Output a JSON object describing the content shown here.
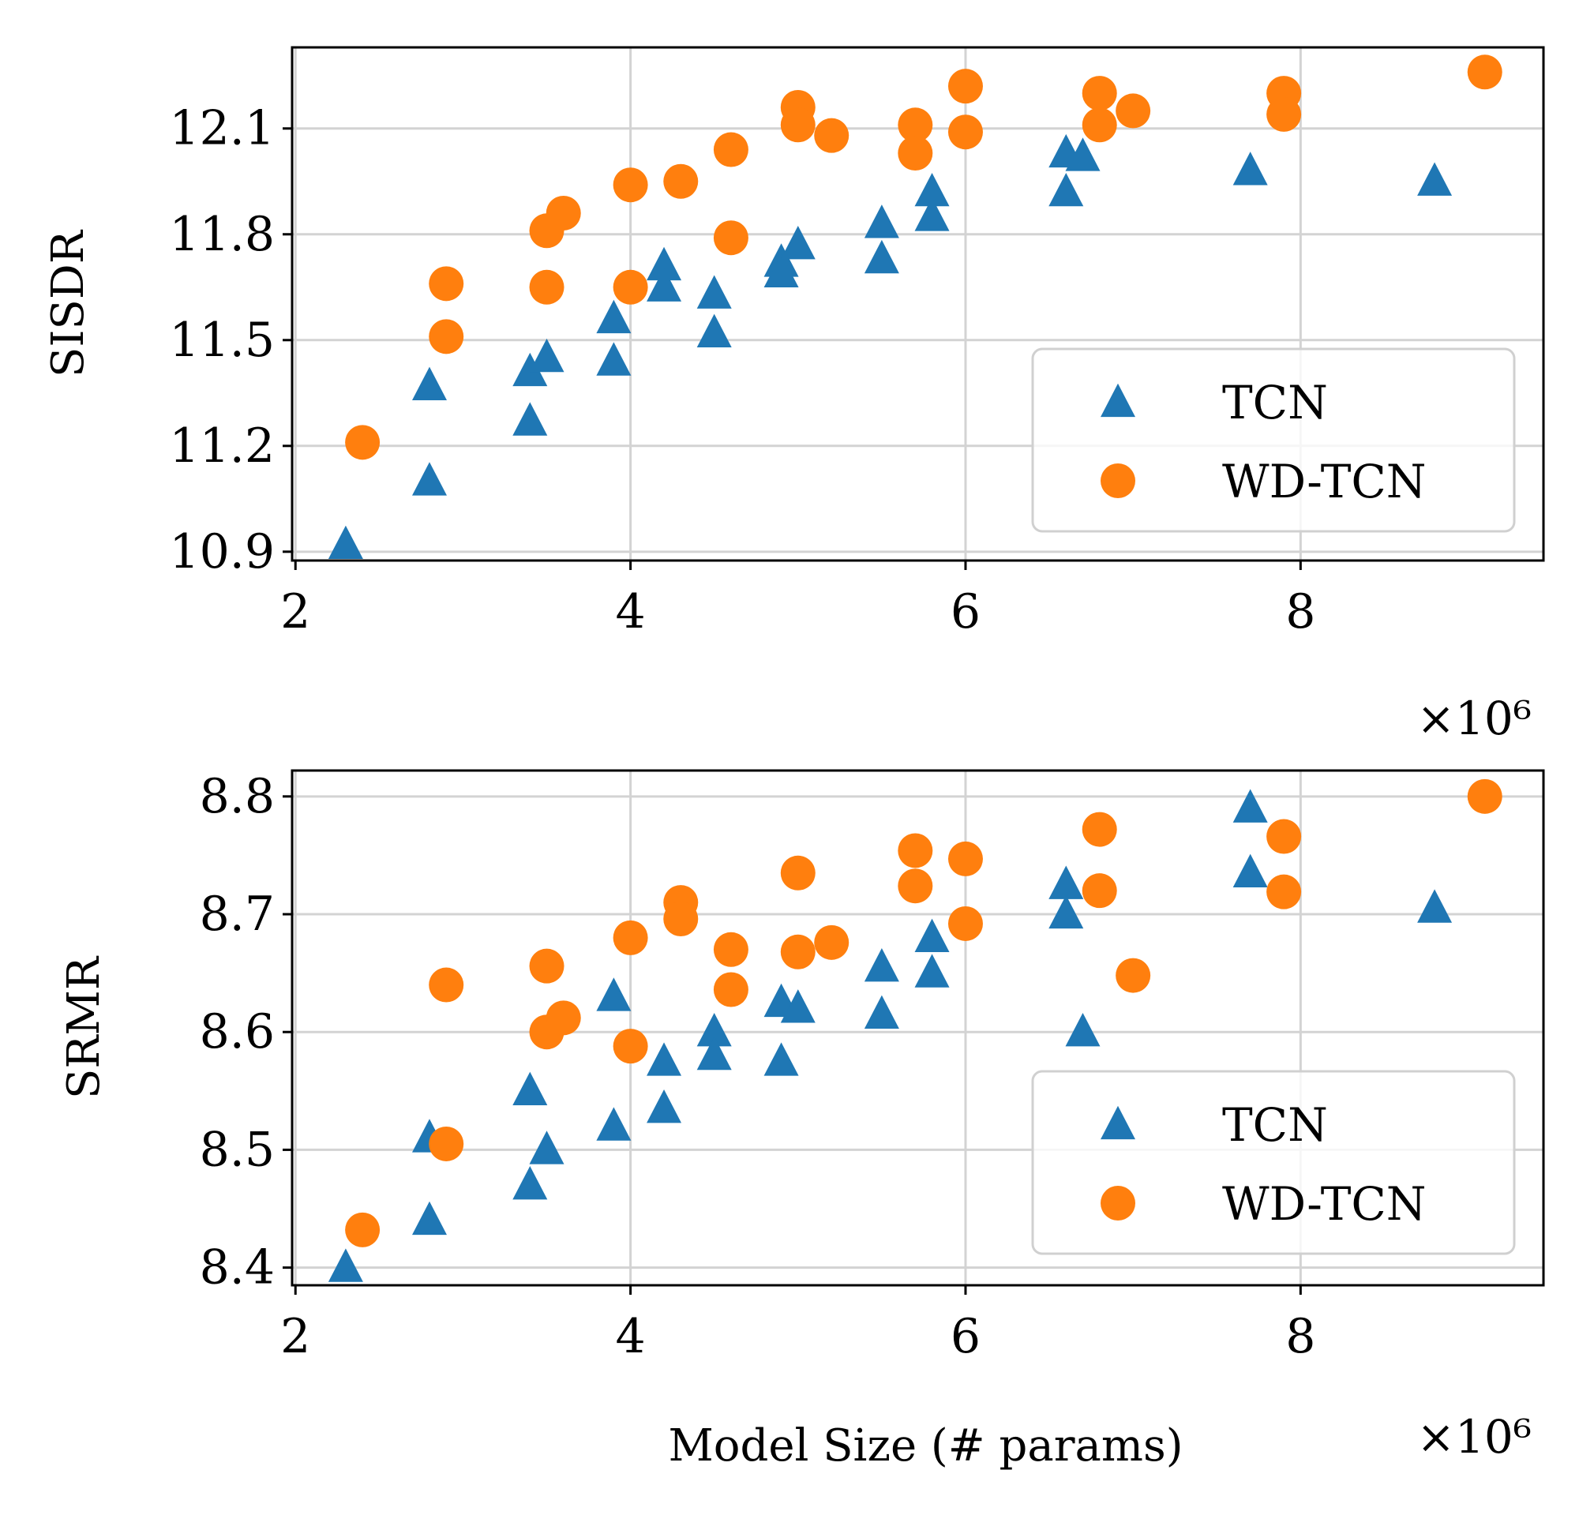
{
  "colors": {
    "tcn": "#1f77b4",
    "wd_tcn": "#ff7f0e",
    "grid": "#d3d3d3",
    "axes": "#000000",
    "background": "#ffffff"
  },
  "chart_data": [
    {
      "id": "top",
      "type": "scatter",
      "xlabel": "",
      "ylabel": "SISDR",
      "x_offset_label": "×10⁶",
      "xlim": [
        1.98,
        9.45
      ],
      "ylim": [
        10.875,
        12.33
      ],
      "xticks": [
        2,
        4,
        6,
        8
      ],
      "xtick_labels": [
        "2",
        "4",
        "6",
        "8"
      ],
      "yticks": [
        10.9,
        11.2,
        11.5,
        11.8,
        12.1
      ],
      "ytick_labels": [
        "10.9",
        "11.2",
        "11.5",
        "11.8",
        "12.1"
      ],
      "grid": true,
      "legend_position": "lower-right",
      "series": [
        {
          "name": "TCN",
          "marker": "triangle",
          "points": [
            [
              2.3,
              10.92
            ],
            [
              2.8,
              11.1
            ],
            [
              2.8,
              11.37
            ],
            [
              3.4,
              11.41
            ],
            [
              3.4,
              11.27
            ],
            [
              3.5,
              11.45
            ],
            [
              3.9,
              11.56
            ],
            [
              3.9,
              11.44
            ],
            [
              4.2,
              11.71
            ],
            [
              4.2,
              11.65
            ],
            [
              4.5,
              11.63
            ],
            [
              4.5,
              11.52
            ],
            [
              4.9,
              11.72
            ],
            [
              4.9,
              11.69
            ],
            [
              5.0,
              11.77
            ],
            [
              5.5,
              11.83
            ],
            [
              5.5,
              11.73
            ],
            [
              5.8,
              11.92
            ],
            [
              5.8,
              11.85
            ],
            [
              6.6,
              12.03
            ],
            [
              6.6,
              11.92
            ],
            [
              6.7,
              12.02
            ],
            [
              7.7,
              11.98
            ],
            [
              8.8,
              11.95
            ]
          ]
        },
        {
          "name": "WD-TCN",
          "marker": "circle",
          "points": [
            [
              2.4,
              11.21
            ],
            [
              2.9,
              11.66
            ],
            [
              2.9,
              11.51
            ],
            [
              3.5,
              11.81
            ],
            [
              3.5,
              11.65
            ],
            [
              3.6,
              11.86
            ],
            [
              4.0,
              11.94
            ],
            [
              4.0,
              11.65
            ],
            [
              4.3,
              11.95
            ],
            [
              4.6,
              12.04
            ],
            [
              4.6,
              11.79
            ],
            [
              5.0,
              12.16
            ],
            [
              5.0,
              12.11
            ],
            [
              5.2,
              12.08
            ],
            [
              5.7,
              12.11
            ],
            [
              5.7,
              12.03
            ],
            [
              6.0,
              12.22
            ],
            [
              6.0,
              12.09
            ],
            [
              6.8,
              12.2
            ],
            [
              6.8,
              12.11
            ],
            [
              7.0,
              12.15
            ],
            [
              7.9,
              12.2
            ],
            [
              7.9,
              12.14
            ],
            [
              9.1,
              12.26
            ]
          ]
        }
      ]
    },
    {
      "id": "bottom",
      "type": "scatter",
      "xlabel": "Model Size (# params)",
      "ylabel": "SRMR",
      "x_offset_label": "×10⁶",
      "xlim": [
        1.98,
        9.45
      ],
      "ylim": [
        8.385,
        8.822
      ],
      "xticks": [
        2,
        4,
        6,
        8
      ],
      "xtick_labels": [
        "2",
        "4",
        "6",
        "8"
      ],
      "yticks": [
        8.4,
        8.5,
        8.6,
        8.7,
        8.8
      ],
      "ytick_labels": [
        "8.4",
        "8.5",
        "8.6",
        "8.7",
        "8.8"
      ],
      "grid": true,
      "legend_position": "lower-right",
      "series": [
        {
          "name": "TCN",
          "marker": "triangle",
          "points": [
            [
              2.3,
              8.4
            ],
            [
              2.8,
              8.44
            ],
            [
              2.8,
              8.51
            ],
            [
              3.4,
              8.55
            ],
            [
              3.4,
              8.47
            ],
            [
              3.5,
              8.5
            ],
            [
              3.9,
              8.63
            ],
            [
              3.9,
              8.52
            ],
            [
              4.2,
              8.575
            ],
            [
              4.2,
              8.535
            ],
            [
              4.5,
              8.6
            ],
            [
              4.5,
              8.58
            ],
            [
              4.9,
              8.625
            ],
            [
              4.9,
              8.575
            ],
            [
              5.0,
              8.62
            ],
            [
              5.5,
              8.655
            ],
            [
              5.5,
              8.615
            ],
            [
              5.8,
              8.68
            ],
            [
              5.8,
              8.65
            ],
            [
              6.6,
              8.725
            ],
            [
              6.6,
              8.7
            ],
            [
              6.7,
              8.6
            ],
            [
              7.7,
              8.79
            ],
            [
              7.7,
              8.735
            ],
            [
              8.8,
              8.705
            ]
          ]
        },
        {
          "name": "WD-TCN",
          "marker": "circle",
          "points": [
            [
              2.4,
              8.432
            ],
            [
              2.9,
              8.64
            ],
            [
              2.9,
              8.505
            ],
            [
              3.5,
              8.656
            ],
            [
              3.5,
              8.6
            ],
            [
              3.6,
              8.612
            ],
            [
              4.0,
              8.68
            ],
            [
              4.0,
              8.588
            ],
            [
              4.3,
              8.71
            ],
            [
              4.3,
              8.696
            ],
            [
              4.6,
              8.67
            ],
            [
              4.6,
              8.636
            ],
            [
              5.0,
              8.735
            ],
            [
              5.0,
              8.668
            ],
            [
              5.2,
              8.676
            ],
            [
              5.7,
              8.754
            ],
            [
              5.7,
              8.724
            ],
            [
              6.0,
              8.747
            ],
            [
              6.0,
              8.692
            ],
            [
              6.8,
              8.772
            ],
            [
              6.8,
              8.72
            ],
            [
              7.0,
              8.648
            ],
            [
              7.9,
              8.766
            ],
            [
              7.9,
              8.719
            ],
            [
              9.1,
              8.8
            ]
          ]
        }
      ]
    }
  ]
}
